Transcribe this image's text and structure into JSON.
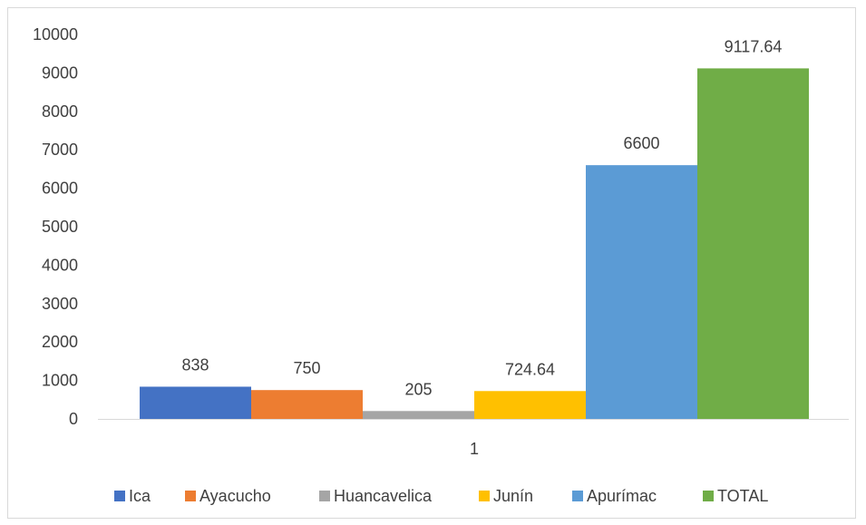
{
  "chart_data": {
    "type": "bar",
    "categories": [
      "1"
    ],
    "series": [
      {
        "name": "Ica",
        "values": [
          838
        ],
        "color": "#4472c4"
      },
      {
        "name": "Ayacucho",
        "values": [
          750
        ],
        "color": "#ed7d31"
      },
      {
        "name": "Huancavelica",
        "values": [
          205
        ],
        "color": "#a5a5a5"
      },
      {
        "name": "Junín",
        "values": [
          724.64
        ],
        "color": "#ffc000"
      },
      {
        "name": "Apurímac",
        "values": [
          6600
        ],
        "color": "#5b9bd5"
      },
      {
        "name": "TOTAL",
        "values": [
          9117.64
        ],
        "color": "#70ad47"
      }
    ],
    "data_labels": [
      "838",
      "750",
      "205",
      "724.64",
      "6600",
      "9117.64"
    ],
    "y_ticks": [
      "0",
      "1000",
      "2000",
      "3000",
      "4000",
      "5000",
      "6000",
      "7000",
      "8000",
      "9000",
      "10000"
    ],
    "ylim": [
      0,
      10000
    ],
    "grid": false,
    "legend_position": "bottom",
    "title": "",
    "xlabel": "",
    "ylabel": ""
  }
}
